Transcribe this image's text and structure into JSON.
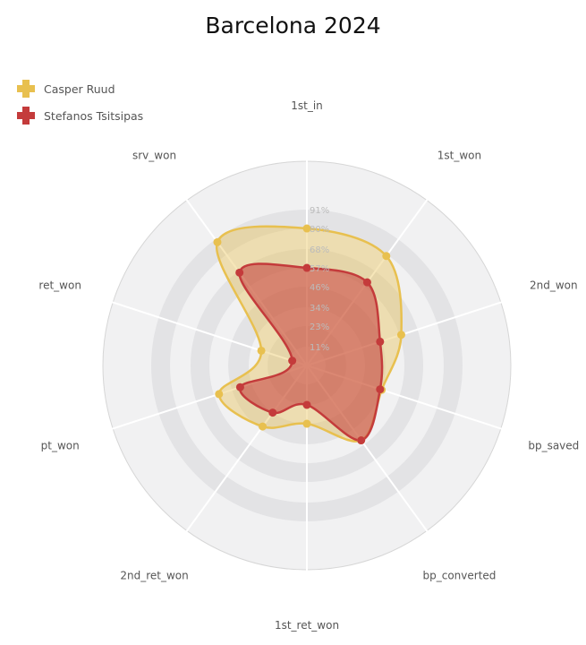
{
  "chart_data": {
    "type": "radar",
    "title": "Barcelona 2024",
    "axes": [
      "1st_in",
      "1st_won",
      "2nd_won",
      "bp_saved",
      "bp_converted",
      "1st_ret_won",
      "2nd_ret_won",
      "pt_won",
      "ret_won",
      "srv_won"
    ],
    "ticks": [
      "11%",
      "23%",
      "34%",
      "46%",
      "57%",
      "68%",
      "80%",
      "91%"
    ],
    "rmax": 91,
    "legend_position": "top-left",
    "series": [
      {
        "name": "Casper Ruud",
        "color": "#e8c04f",
        "fill": "rgba(232,192,79,0.40)",
        "values": [
          80,
          79,
          58,
          46,
          54,
          34,
          44,
          54,
          28,
          89
        ]
      },
      {
        "name": "Stefanos Tsitsipas",
        "color": "#c43b3b",
        "fill": "rgba(196,59,59,0.55)",
        "values": [
          57,
          60,
          45,
          45,
          54,
          23,
          34,
          41,
          9,
          67
        ]
      }
    ]
  }
}
